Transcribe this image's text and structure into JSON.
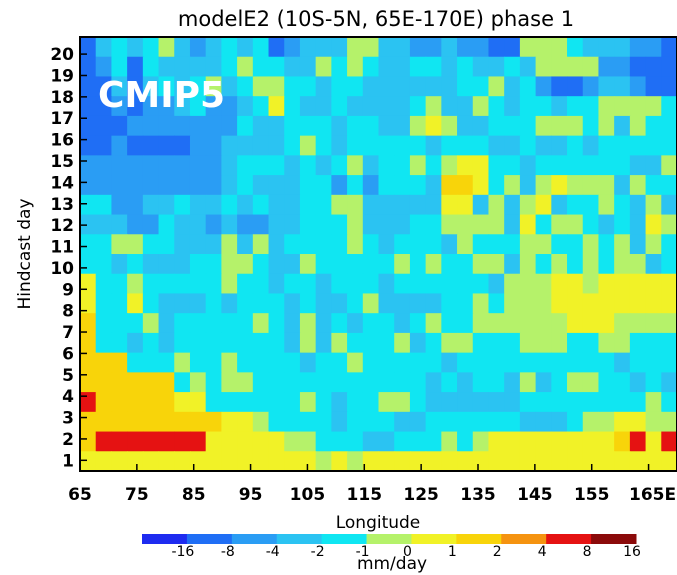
{
  "chart_data": {
    "type": "heatmap",
    "title": "modelE2 (10S-5N, 65E-170E) phase 1",
    "xlabel": "Longitude",
    "ylabel": "Hindcast day",
    "watermark": "CMIP5",
    "x_ticks": [
      "65",
      "75",
      "85",
      "95",
      "105",
      "115",
      "125",
      "135",
      "145",
      "155",
      "165E"
    ],
    "x_tick_values": [
      65,
      75,
      85,
      95,
      105,
      115,
      125,
      135,
      145,
      155,
      165
    ],
    "xlim": [
      65,
      170
    ],
    "y_ticks": [
      "1",
      "2",
      "3",
      "4",
      "5",
      "6",
      "7",
      "8",
      "9",
      "10",
      "11",
      "12",
      "13",
      "14",
      "15",
      "16",
      "17",
      "18",
      "19",
      "20"
    ],
    "ylim": [
      0.5,
      20.8
    ],
    "grid": false,
    "colorbar": {
      "label": "mm/day",
      "tick_labels": [
        "-16",
        "-8",
        "-4",
        "-2",
        "-1",
        "0",
        "1",
        "2",
        "4",
        "8",
        "16"
      ],
      "colors": [
        "#1e2bf0",
        "#1f6ef5",
        "#2a9df4",
        "#2bc3f2",
        "#10e6f2",
        "#b5f26a",
        "#f1f227",
        "#f8d40a",
        "#f59310",
        "#e51212",
        "#8b0a0a"
      ]
    },
    "legend": "bottom",
    "columns": 38,
    "rows": 22,
    "row_order": "top-to-bottom",
    "grid_values": [
      "13434532343412333553322322115554333221",
      "12414333345443354543344343343555522111",
      "11313434534554434433333344534211233211",
      "11212234223464334333345335434434455554",
      "11122222224334443443356533444555453544",
      "11211112233334543444443444334334344444",
      "22222222234443434534454566443444444335",
      "22222222234333442424443776453565553544",
      "44223343343433445533333663535634454353",
      "33322433232233444533344555536455434365",
      "44554433353534444543444354445544545354",
      "44343334455433544444545445535454545534",
      "64454444454434434443444444355566566666",
      "64464333434443433453333445455566666666",
      "74445344444543534344345445555556665555",
      "74434344444443535444534554445554455444",
      "77744454454444344544444344444444443444",
      "77777745455444444444443434435345544343",
      "97777766444444543445543333334444444454",
      "77777777766544443444334444443334556655",
      "79999999666665544433444545666666667969",
      "66666666666666656566666666666666666666"
    ]
  }
}
